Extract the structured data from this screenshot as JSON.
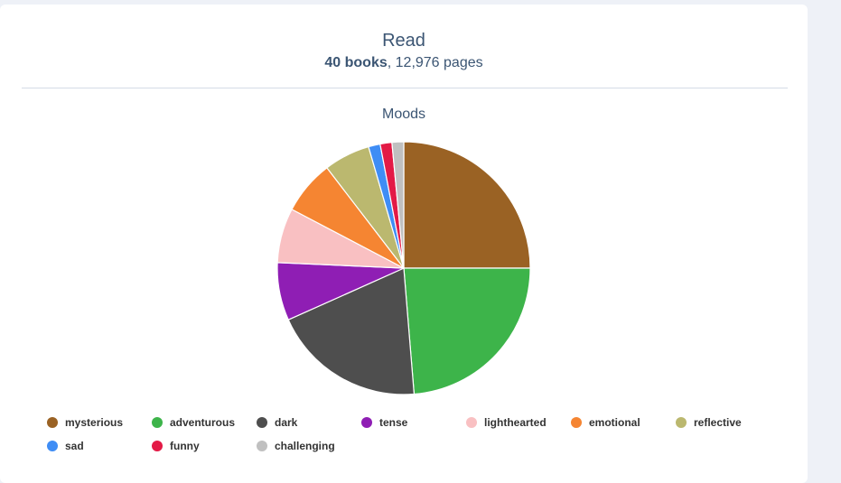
{
  "header": {
    "title": "Read",
    "books": "40 books",
    "separator": ",",
    "pages": "12,976 pages"
  },
  "chart_data": {
    "type": "pie",
    "title": "Moods",
    "start_angle_deg": 0,
    "slices": [
      {
        "label": "mysterious",
        "value": 25.0,
        "color": "#9a6224"
      },
      {
        "label": "adventurous",
        "value": 23.7,
        "color": "#3db44a"
      },
      {
        "label": "dark",
        "value": 19.6,
        "color": "#4e4e4e"
      },
      {
        "label": "tense",
        "value": 7.4,
        "color": "#8f1eb4"
      },
      {
        "label": "lighthearted",
        "value": 7.0,
        "color": "#f9c0c2"
      },
      {
        "label": "emotional",
        "value": 6.9,
        "color": "#f58532"
      },
      {
        "label": "reflective",
        "value": 5.9,
        "color": "#bbb86f"
      },
      {
        "label": "sad",
        "value": 1.5,
        "color": "#3f8df5"
      },
      {
        "label": "funny",
        "value": 1.5,
        "color": "#e31a46"
      },
      {
        "label": "challenging",
        "value": 1.5,
        "color": "#c0c0c0"
      }
    ]
  }
}
